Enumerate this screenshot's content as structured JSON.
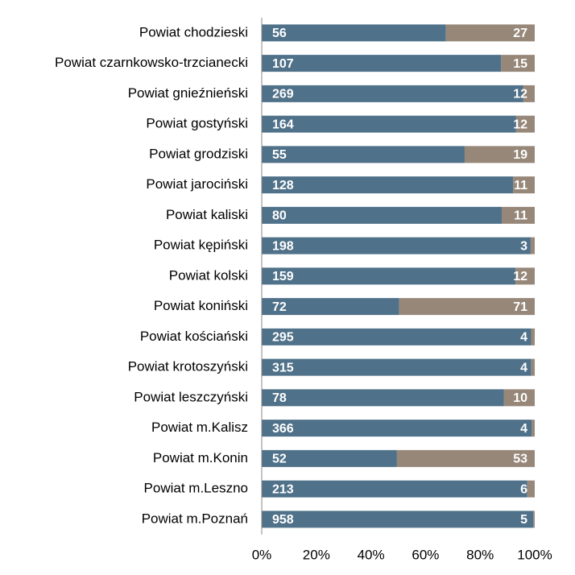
{
  "chart_data": {
    "type": "bar",
    "orientation": "horizontal",
    "stacking": "percent",
    "categories": [
      "Powiat chodzieski",
      "Powiat czarnkowsko-trzcianecki",
      "Powiat gnieźnieński",
      "Powiat gostyński",
      "Powiat grodziski",
      "Powiat jarociński",
      "Powiat kaliski",
      "Powiat kępiński",
      "Powiat kolski",
      "Powiat koniński",
      "Powiat kościański",
      "Powiat krotoszyński",
      "Powiat leszczyński",
      "Powiat m.Kalisz",
      "Powiat m.Konin",
      "Powiat m.Leszno",
      "Powiat m.Poznań"
    ],
    "series": [
      {
        "color": "#4f7189",
        "values": [
          56,
          107,
          269,
          164,
          55,
          128,
          80,
          198,
          159,
          72,
          295,
          315,
          78,
          366,
          52,
          213,
          958
        ]
      },
      {
        "color": "#968779",
        "values": [
          27,
          15,
          12,
          12,
          19,
          11,
          11,
          3,
          12,
          71,
          4,
          4,
          10,
          4,
          53,
          6,
          5
        ]
      }
    ],
    "xlim": [
      0,
      100
    ],
    "xticks": [
      {
        "value": 0,
        "label": "0%"
      },
      {
        "value": 20,
        "label": "20%"
      },
      {
        "value": 40,
        "label": "40%"
      },
      {
        "value": 60,
        "label": "60%"
      },
      {
        "value": 80,
        "label": "80%"
      },
      {
        "value": 100,
        "label": "100%"
      }
    ],
    "grid": false
  }
}
